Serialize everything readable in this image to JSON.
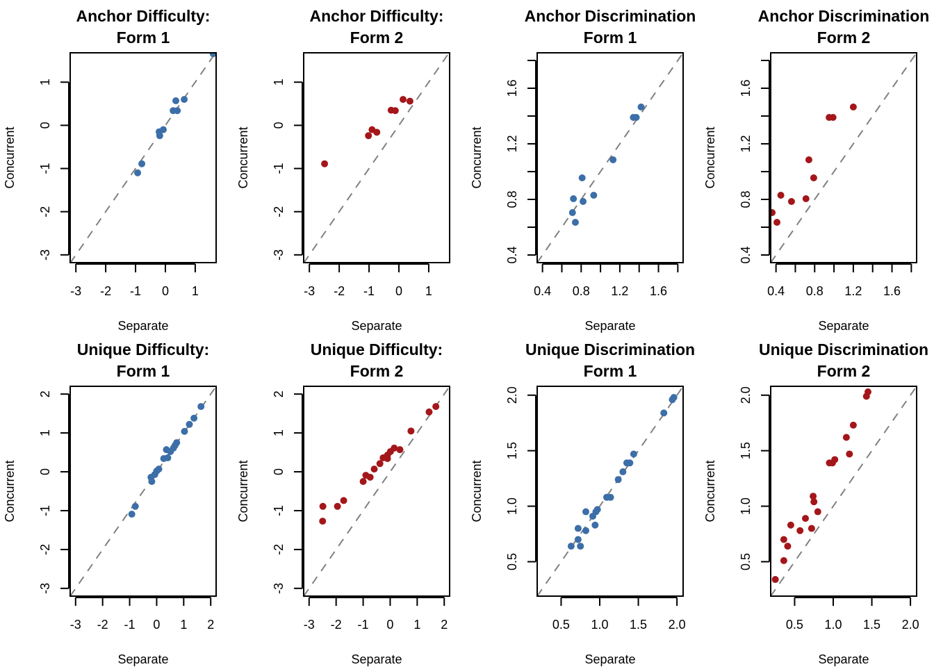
{
  "colors": {
    "form1": "#3c6ea8",
    "form2": "#a4161a",
    "reference_line": "#808080"
  },
  "chart_data": [
    {
      "type": "scatter",
      "title": [
        "Anchor Difficulty:",
        "Form 1"
      ],
      "xlabel": "Separate",
      "ylabel": "Concurrent",
      "xlim": [
        -3.19,
        1.7
      ],
      "ylim": [
        -3.18,
        1.68
      ],
      "xticks": [
        -3,
        -2,
        -1,
        0,
        1
      ],
      "xtick_labels": [
        "-3",
        "-2",
        "-1",
        "0",
        "1"
      ],
      "yticks": [
        -3,
        -2,
        -1,
        0,
        1
      ],
      "ytick_labels": [
        "-3",
        "-2",
        "-1",
        "0",
        "1"
      ],
      "color_key": "form1",
      "reference_line": "y = x",
      "points": [
        [
          1.6,
          1.66
        ],
        [
          0.35,
          0.57
        ],
        [
          0.63,
          0.6
        ],
        [
          0.26,
          0.34
        ],
        [
          0.4,
          0.34
        ],
        [
          -0.21,
          -0.15
        ],
        [
          -0.07,
          -0.1
        ],
        [
          -0.19,
          -0.24
        ],
        [
          -0.79,
          -0.89
        ],
        [
          -0.93,
          -1.1
        ]
      ]
    },
    {
      "type": "scatter",
      "title": [
        "Anchor Difficulty:",
        "Form 2"
      ],
      "xlabel": "Separate",
      "ylabel": "Concurrent",
      "xlim": [
        -3.19,
        1.7
      ],
      "ylim": [
        -3.18,
        1.68
      ],
      "xticks": [
        -3,
        -2,
        -1,
        0,
        1
      ],
      "xtick_labels": [
        "-3",
        "-2",
        "-1",
        "0",
        "1"
      ],
      "yticks": [
        -3,
        -2,
        -1,
        0,
        1
      ],
      "ytick_labels": [
        "-3",
        "-2",
        "-1",
        "0",
        "1"
      ],
      "color_key": "form2",
      "reference_line": "y = x",
      "points": [
        [
          -2.49,
          -0.89
        ],
        [
          -1.02,
          -0.24
        ],
        [
          -0.9,
          -0.1
        ],
        [
          -0.74,
          -0.16
        ],
        [
          -0.26,
          0.35
        ],
        [
          -0.12,
          0.34
        ],
        [
          0.14,
          0.6
        ],
        [
          0.37,
          0.56
        ]
      ]
    },
    {
      "type": "scatter",
      "title": [
        "Anchor Discrimination",
        "Form 1"
      ],
      "xlabel": "Separate",
      "ylabel": "Concurrent",
      "xlim": [
        0.345,
        1.855
      ],
      "ylim": [
        0.345,
        1.855
      ],
      "xticks": [
        0.4,
        0.6,
        0.8,
        1.0,
        1.2,
        1.4,
        1.6,
        1.8
      ],
      "xtick_labels": [
        "0.4",
        "",
        "0.8",
        "",
        "1.2",
        "",
        "1.6",
        ""
      ],
      "yticks": [
        0.4,
        0.6,
        0.8,
        1.0,
        1.2,
        1.4,
        1.6,
        1.8
      ],
      "ytick_labels": [
        "0.4",
        "",
        "0.8",
        "",
        "1.2",
        "",
        "1.6",
        ""
      ],
      "color_key": "form1",
      "reference_line": "y = x",
      "points": [
        [
          1.42,
          1.465
        ],
        [
          1.34,
          1.39
        ],
        [
          1.37,
          1.39
        ],
        [
          1.13,
          1.085
        ],
        [
          0.81,
          0.955
        ],
        [
          0.72,
          0.805
        ],
        [
          0.93,
          0.83
        ],
        [
          0.82,
          0.785
        ],
        [
          0.71,
          0.705
        ],
        [
          0.74,
          0.635
        ]
      ]
    },
    {
      "type": "scatter",
      "title": [
        "Anchor Discrimination",
        "Form 2"
      ],
      "xlabel": "Separate",
      "ylabel": "Concurrent",
      "xlim": [
        0.345,
        1.855
      ],
      "ylim": [
        0.345,
        1.855
      ],
      "xticks": [
        0.4,
        0.6,
        0.8,
        1.0,
        1.2,
        1.4,
        1.6,
        1.8
      ],
      "xtick_labels": [
        "0.4",
        "",
        "0.8",
        "",
        "1.2",
        "",
        "1.6",
        ""
      ],
      "yticks": [
        0.4,
        0.6,
        0.8,
        1.0,
        1.2,
        1.4,
        1.6,
        1.8
      ],
      "ytick_labels": [
        "0.4",
        "",
        "0.8",
        "",
        "1.2",
        "",
        "1.6",
        ""
      ],
      "color_key": "form2",
      "reference_line": "y = x",
      "points": [
        [
          1.2,
          1.465
        ],
        [
          0.95,
          1.39
        ],
        [
          0.99,
          1.39
        ],
        [
          0.74,
          1.085
        ],
        [
          0.79,
          0.955
        ],
        [
          0.45,
          0.83
        ],
        [
          0.56,
          0.785
        ],
        [
          0.71,
          0.805
        ],
        [
          0.36,
          0.705
        ],
        [
          0.41,
          0.635
        ]
      ]
    },
    {
      "type": "scatter",
      "title": [
        "Unique Difficulty:",
        "Form 1"
      ],
      "xlabel": "Separate",
      "ylabel": "Concurrent",
      "xlim": [
        -3.2,
        2.2
      ],
      "ylim": [
        -3.2,
        2.2
      ],
      "xticks": [
        -3,
        -2,
        -1,
        0,
        1,
        2
      ],
      "xtick_labels": [
        "-3",
        "-2",
        "-1",
        "0",
        "1",
        "2"
      ],
      "yticks": [
        -3,
        -2,
        -1,
        0,
        1,
        2
      ],
      "ytick_labels": [
        "-3",
        "-2",
        "-1",
        "0",
        "1",
        "2"
      ],
      "color_key": "form1",
      "reference_line": "y = x",
      "points": [
        [
          1.64,
          1.68
        ],
        [
          1.38,
          1.38
        ],
        [
          1.21,
          1.22
        ],
        [
          1.03,
          1.04
        ],
        [
          0.74,
          0.75
        ],
        [
          0.68,
          0.68
        ],
        [
          0.62,
          0.61
        ],
        [
          0.51,
          0.52
        ],
        [
          0.36,
          0.57
        ],
        [
          0.41,
          0.36
        ],
        [
          0.26,
          0.34
        ],
        [
          0.08,
          0.07
        ],
        [
          0.0,
          0.02
        ],
        [
          -0.07,
          -0.07
        ],
        [
          -0.21,
          -0.14
        ],
        [
          -0.18,
          -0.25
        ],
        [
          -0.79,
          -0.89
        ],
        [
          -0.92,
          -1.09
        ]
      ]
    },
    {
      "type": "scatter",
      "title": [
        "Unique Difficulty:",
        "Form 2"
      ],
      "xlabel": "Separate",
      "ylabel": "Concurrent",
      "xlim": [
        -3.2,
        2.2
      ],
      "ylim": [
        -3.2,
        2.2
      ],
      "xticks": [
        -3,
        -2,
        -1,
        0,
        1,
        2
      ],
      "xtick_labels": [
        "-3",
        "-2",
        "-1",
        "0",
        "1",
        "2"
      ],
      "yticks": [
        -3,
        -2,
        -1,
        0,
        1,
        2
      ],
      "ytick_labels": [
        "-3",
        "-2",
        "-1",
        "0",
        "1",
        "2"
      ],
      "color_key": "form2",
      "reference_line": "y = x",
      "points": [
        [
          1.69,
          1.68
        ],
        [
          1.44,
          1.54
        ],
        [
          0.77,
          1.05
        ],
        [
          0.36,
          0.57
        ],
        [
          0.15,
          0.61
        ],
        [
          0.01,
          0.52
        ],
        [
          -0.1,
          0.43
        ],
        [
          -0.1,
          0.34
        ],
        [
          -0.26,
          0.36
        ],
        [
          -0.38,
          0.21
        ],
        [
          -0.59,
          0.07
        ],
        [
          -0.74,
          -0.14
        ],
        [
          -0.9,
          -0.09
        ],
        [
          -1.0,
          -0.25
        ],
        [
          -1.72,
          -0.74
        ],
        [
          -1.95,
          -0.89
        ],
        [
          -2.49,
          -0.89
        ],
        [
          -2.5,
          -1.27
        ]
      ]
    },
    {
      "type": "scatter",
      "title": [
        "Unique Discrimination",
        "Form 1"
      ],
      "xlabel": "Separate",
      "ylabel": "Concurrent",
      "xlim": [
        0.19,
        2.08
      ],
      "ylim": [
        0.19,
        2.08
      ],
      "xticks": [
        0.5,
        1.0,
        1.5,
        2.0
      ],
      "xtick_labels": [
        "0.5",
        "1.0",
        "1.5",
        "2.0"
      ],
      "yticks": [
        0.5,
        1.0,
        1.5,
        2.0
      ],
      "ytick_labels": [
        "0.5",
        "1.0",
        "1.5",
        "2.0"
      ],
      "color_key": "form1",
      "reference_line": "y = x",
      "points": [
        [
          1.96,
          1.98
        ],
        [
          1.94,
          1.96
        ],
        [
          1.83,
          1.84
        ],
        [
          1.44,
          1.47
        ],
        [
          1.35,
          1.39
        ],
        [
          1.39,
          1.39
        ],
        [
          1.3,
          1.31
        ],
        [
          1.24,
          1.24
        ],
        [
          1.09,
          1.08
        ],
        [
          1.14,
          1.08
        ],
        [
          0.97,
          0.97
        ],
        [
          0.95,
          0.95
        ],
        [
          0.82,
          0.95
        ],
        [
          0.91,
          0.91
        ],
        [
          0.94,
          0.83
        ],
        [
          0.72,
          0.8
        ],
        [
          0.82,
          0.78
        ],
        [
          0.72,
          0.7
        ],
        [
          0.63,
          0.64
        ],
        [
          0.75,
          0.64
        ]
      ]
    },
    {
      "type": "scatter",
      "title": [
        "Unique Discrimination",
        "Form 2"
      ],
      "xlabel": "Separate",
      "ylabel": "Concurrent",
      "xlim": [
        0.19,
        2.08
      ],
      "ylim": [
        0.19,
        2.08
      ],
      "xticks": [
        0.5,
        1.0,
        1.5,
        2.0
      ],
      "xtick_labels": [
        "0.5",
        "1.0",
        "1.5",
        "2.0"
      ],
      "yticks": [
        0.5,
        1.0,
        1.5,
        2.0
      ],
      "ytick_labels": [
        "0.5",
        "1.0",
        "1.5",
        "2.0"
      ],
      "color_key": "form2",
      "reference_line": "y = x",
      "points": [
        [
          1.45,
          2.03
        ],
        [
          1.43,
          1.99
        ],
        [
          1.26,
          1.73
        ],
        [
          1.17,
          1.62
        ],
        [
          1.21,
          1.47
        ],
        [
          1.02,
          1.42
        ],
        [
          0.99,
          1.39
        ],
        [
          0.95,
          1.39
        ],
        [
          0.74,
          1.09
        ],
        [
          0.75,
          1.04
        ],
        [
          0.8,
          0.95
        ],
        [
          0.64,
          0.89
        ],
        [
          0.45,
          0.83
        ],
        [
          0.72,
          0.8
        ],
        [
          0.57,
          0.78
        ],
        [
          0.36,
          0.7
        ],
        [
          0.41,
          0.64
        ],
        [
          0.36,
          0.51
        ],
        [
          0.25,
          0.34
        ]
      ]
    }
  ]
}
